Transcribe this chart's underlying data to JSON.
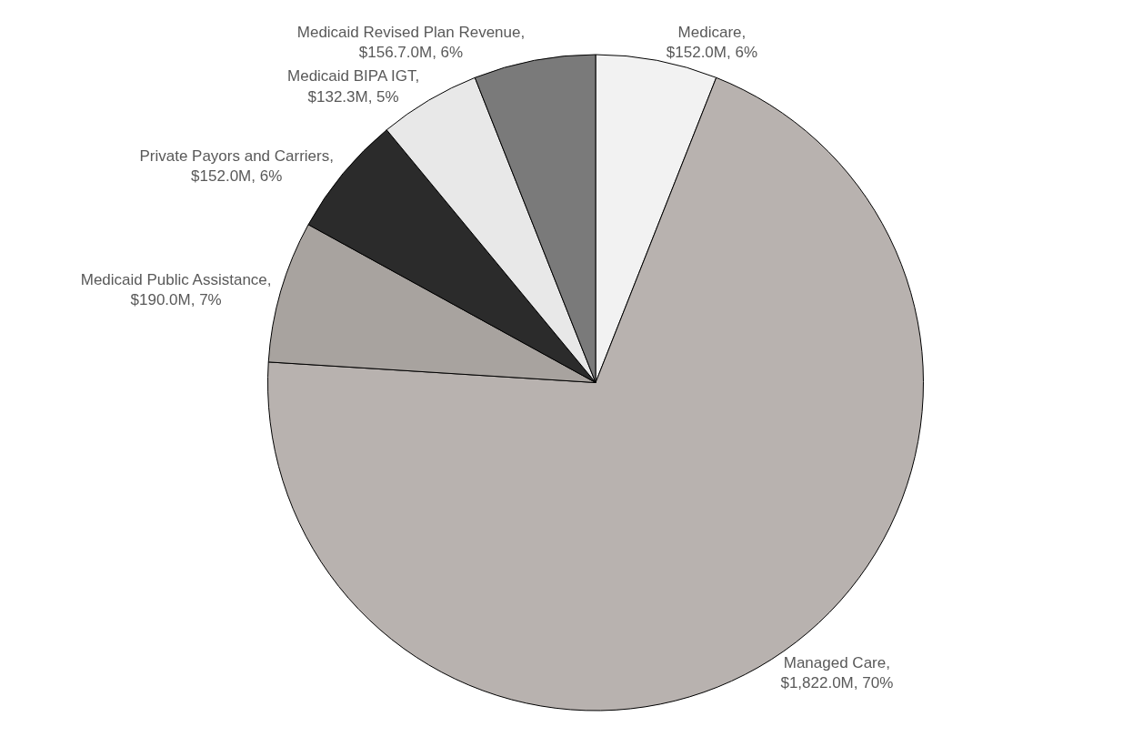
{
  "chart_data": {
    "type": "pie",
    "categories": [
      "Medicare, $152.0M, 6%",
      "Managed Care, $1,822.0M, 70%",
      "Medicaid Public Assistance, $190.0M, 7%",
      "Private Payors and Carriers, $152.0M, 6%",
      "Medicaid BIPA IGT, $132.3M, 5%",
      "Medicaid Revised Plan Revenue, $156.7.0M, 6%"
    ],
    "values": [
      6,
      70,
      7,
      6,
      5,
      6
    ],
    "colors": [
      "#f2f2f2",
      "#b8b2af",
      "#a8a39f",
      "#2b2b2b",
      "#e8e8e8",
      "#7a7a7a"
    ],
    "legend": false
  }
}
